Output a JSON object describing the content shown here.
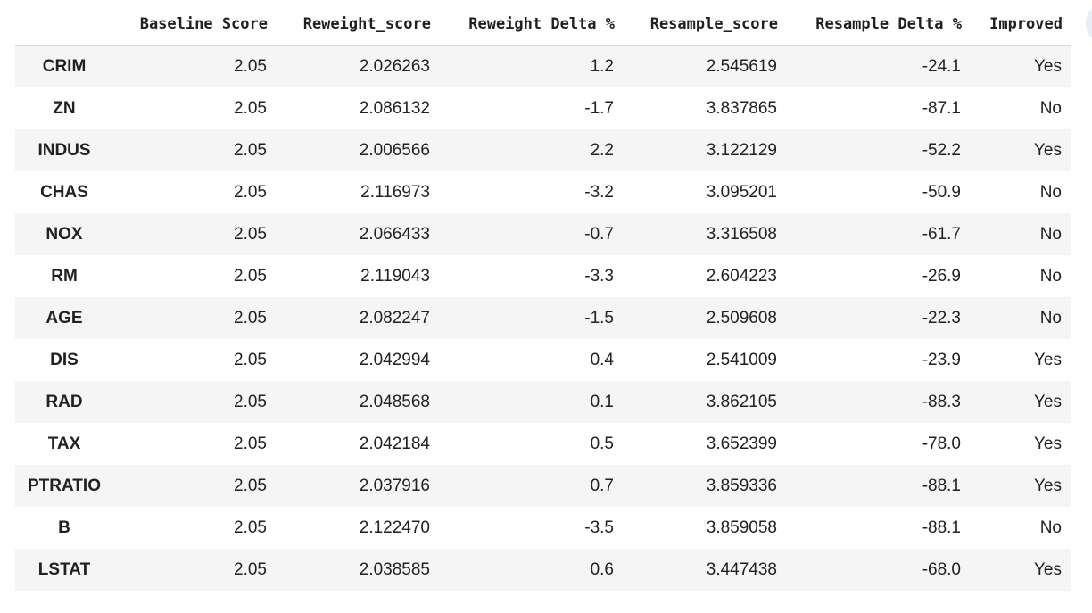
{
  "table": {
    "columns": [
      "",
      "Baseline Score",
      "Reweight_score",
      "Reweight Delta %",
      "Resample_score",
      "Resample Delta %",
      "Improved"
    ],
    "rows": [
      {
        "index": "CRIM",
        "baseline": "2.05",
        "reweight_score": "2.026263",
        "reweight_delta": "1.2",
        "resample_score": "2.545619",
        "resample_delta": "-24.1",
        "improved": "Yes"
      },
      {
        "index": "ZN",
        "baseline": "2.05",
        "reweight_score": "2.086132",
        "reweight_delta": "-1.7",
        "resample_score": "3.837865",
        "resample_delta": "-87.1",
        "improved": "No"
      },
      {
        "index": "INDUS",
        "baseline": "2.05",
        "reweight_score": "2.006566",
        "reweight_delta": "2.2",
        "resample_score": "3.122129",
        "resample_delta": "-52.2",
        "improved": "Yes"
      },
      {
        "index": "CHAS",
        "baseline": "2.05",
        "reweight_score": "2.116973",
        "reweight_delta": "-3.2",
        "resample_score": "3.095201",
        "resample_delta": "-50.9",
        "improved": "No"
      },
      {
        "index": "NOX",
        "baseline": "2.05",
        "reweight_score": "2.066433",
        "reweight_delta": "-0.7",
        "resample_score": "3.316508",
        "resample_delta": "-61.7",
        "improved": "No"
      },
      {
        "index": "RM",
        "baseline": "2.05",
        "reweight_score": "2.119043",
        "reweight_delta": "-3.3",
        "resample_score": "2.604223",
        "resample_delta": "-26.9",
        "improved": "No"
      },
      {
        "index": "AGE",
        "baseline": "2.05",
        "reweight_score": "2.082247",
        "reweight_delta": "-1.5",
        "resample_score": "2.509608",
        "resample_delta": "-22.3",
        "improved": "No"
      },
      {
        "index": "DIS",
        "baseline": "2.05",
        "reweight_score": "2.042994",
        "reweight_delta": "0.4",
        "resample_score": "2.541009",
        "resample_delta": "-23.9",
        "improved": "Yes"
      },
      {
        "index": "RAD",
        "baseline": "2.05",
        "reweight_score": "2.048568",
        "reweight_delta": "0.1",
        "resample_score": "3.862105",
        "resample_delta": "-88.3",
        "improved": "Yes"
      },
      {
        "index": "TAX",
        "baseline": "2.05",
        "reweight_score": "2.042184",
        "reweight_delta": "0.5",
        "resample_score": "3.652399",
        "resample_delta": "-78.0",
        "improved": "Yes"
      },
      {
        "index": "PTRATIO",
        "baseline": "2.05",
        "reweight_score": "2.037916",
        "reweight_delta": "0.7",
        "resample_score": "3.859336",
        "resample_delta": "-88.1",
        "improved": "Yes"
      },
      {
        "index": "B",
        "baseline": "2.05",
        "reweight_score": "2.122470",
        "reweight_delta": "-3.5",
        "resample_score": "3.859058",
        "resample_delta": "-88.1",
        "improved": "No"
      },
      {
        "index": "LSTAT",
        "baseline": "2.05",
        "reweight_score": "2.038585",
        "reweight_delta": "0.6",
        "resample_score": "3.447438",
        "resample_delta": "-68.0",
        "improved": "Yes"
      }
    ]
  },
  "colors": {
    "row_stripe": "#f5f5f5",
    "text": "#212121",
    "header_rule": "#d9d9d9"
  }
}
